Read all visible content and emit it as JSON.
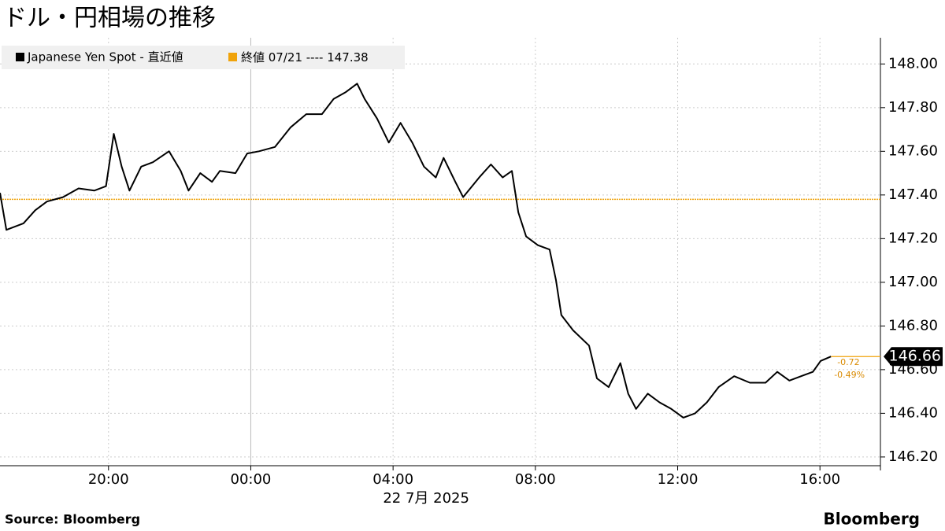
{
  "chart_data": {
    "type": "line",
    "title": "ドル・円相場の推移",
    "x": [
      -7.05,
      -6.87,
      -6.39,
      -6.06,
      -5.73,
      -5.28,
      -4.84,
      -4.4,
      -4.07,
      -3.85,
      -3.63,
      -3.41,
      -3.08,
      -2.75,
      -2.3,
      -1.97,
      -1.75,
      -1.42,
      -1.09,
      -0.87,
      -0.43,
      -0.1,
      0.23,
      0.68,
      1.12,
      1.56,
      2.0,
      2.33,
      2.66,
      2.99,
      3.2,
      3.55,
      3.88,
      4.21,
      4.54,
      4.87,
      5.2,
      5.42,
      5.75,
      5.97,
      6.42,
      6.75,
      7.08,
      7.34,
      7.52,
      7.74,
      8.07,
      8.4,
      8.58,
      8.73,
      9.06,
      9.51,
      9.73,
      10.06,
      10.39,
      10.61,
      10.83,
      11.16,
      11.49,
      11.82,
      12.16,
      12.49,
      12.82,
      13.15,
      13.59,
      14.03,
      14.47,
      14.8,
      15.14,
      15.47,
      15.8,
      16.02,
      16.31
    ],
    "series": [
      {
        "name": "Japanese Yen Spot - 直近値",
        "color": "#000000",
        "values": [
          147.41,
          147.24,
          147.27,
          147.33,
          147.37,
          147.39,
          147.43,
          147.42,
          147.44,
          147.68,
          147.53,
          147.42,
          147.53,
          147.55,
          147.6,
          147.51,
          147.42,
          147.5,
          147.46,
          147.51,
          147.5,
          147.59,
          147.6,
          147.62,
          147.71,
          147.77,
          147.77,
          147.84,
          147.87,
          147.91,
          147.84,
          147.75,
          147.64,
          147.73,
          147.64,
          147.53,
          147.48,
          147.57,
          147.46,
          147.39,
          147.48,
          147.54,
          147.48,
          147.51,
          147.32,
          147.21,
          147.17,
          147.15,
          147.01,
          146.85,
          146.78,
          146.71,
          146.56,
          146.52,
          146.63,
          146.49,
          146.42,
          146.49,
          146.45,
          146.42,
          146.38,
          146.4,
          146.45,
          146.52,
          146.57,
          146.54,
          146.54,
          146.59,
          146.55,
          146.57,
          146.59,
          146.64,
          146.66
        ]
      }
    ],
    "reference_line": {
      "name": "終値 07/21 ----",
      "value": 147.38,
      "color": "#f0a30a"
    },
    "change": -0.72,
    "change_pct": {
      "value": -0.49,
      "label": "-0.49%"
    },
    "xlim": [
      -7.05,
      17.7
    ],
    "xticks": [
      {
        "value": -4,
        "label": "20:00"
      },
      {
        "value": 0,
        "label": "00:00"
      },
      {
        "value": 4,
        "label": "04:00"
      },
      {
        "value": 8,
        "label": "08:00"
      },
      {
        "value": 12,
        "label": "12:00"
      },
      {
        "value": 16,
        "label": "16:00"
      }
    ],
    "x_label": "22 7月 2025",
    "ylim": [
      146.16,
      148.12
    ],
    "yticks": [
      {
        "value": 146.2,
        "label": "146.20"
      },
      {
        "value": 146.4,
        "label": "146.40"
      },
      {
        "value": 146.6,
        "label": "146.60"
      },
      {
        "value": 146.8,
        "label": "146.80"
      },
      {
        "value": 147.0,
        "label": "147.00"
      },
      {
        "value": 147.2,
        "label": "147.20"
      },
      {
        "value": 147.4,
        "label": "147.40"
      },
      {
        "value": 147.6,
        "label": "147.60"
      },
      {
        "value": 147.8,
        "label": "147.80"
      },
      {
        "value": 148.0,
        "label": "148.00"
      }
    ],
    "grid": true
  },
  "source": "Source:  Bloomberg",
  "logo": "Bloomberg"
}
